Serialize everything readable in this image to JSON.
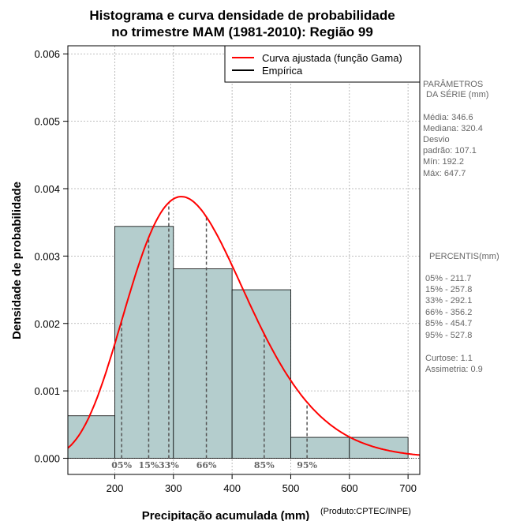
{
  "chart_data": {
    "type": "bar",
    "title_line1": "Histograma e curva densidade de probabilidade",
    "title_line2": "no trimestre MAM (1981-2010): Região 99",
    "xlabel": "Precipitação acumulada (mm)",
    "ylabel": "Densidade de probabilidade",
    "credit": "(Produto:CPTEC/INPE)",
    "xlim": [
      120,
      720
    ],
    "ylim": [
      -0.00024,
      0.00612
    ],
    "x_ticks": [
      200,
      300,
      400,
      500,
      600,
      700
    ],
    "x_tick_labels": [
      "200",
      "300",
      "400",
      "500",
      "600",
      "700"
    ],
    "y_ticks": [
      0,
      0.001,
      0.002,
      0.003,
      0.004,
      0.005,
      0.006
    ],
    "y_tick_labels": [
      "0.000",
      "0.001",
      "0.002",
      "0.003",
      "0.004",
      "0.005",
      "0.006"
    ],
    "bins": [
      {
        "start": 100,
        "end": 200,
        "density": 0.00063
      },
      {
        "start": 200,
        "end": 300,
        "density": 0.00344
      },
      {
        "start": 300,
        "end": 400,
        "density": 0.00281
      },
      {
        "start": 400,
        "end": 500,
        "density": 0.0025
      },
      {
        "start": 500,
        "end": 600,
        "density": 0.00031
      },
      {
        "start": 600,
        "end": 700,
        "density": 0.00031
      }
    ],
    "fitted_curve": {
      "name": "Curva ajustada (função Gama)",
      "distribution": "gamma",
      "shape": 10.47,
      "scale": 33.1
    },
    "percentile_markers": [
      {
        "label": "05%",
        "value": 211.7
      },
      {
        "label": "15%",
        "value": 257.8
      },
      {
        "label": "33%",
        "value": 292.1
      },
      {
        "label": "66%",
        "value": 356.2
      },
      {
        "label": "85%",
        "value": 454.7
      },
      {
        "label": "95%",
        "value": 527.8
      }
    ],
    "legend": [
      "Curva ajustada (função Gama)",
      "Empírica"
    ],
    "colors": {
      "bar_fill": "#b4cdcd",
      "curve": "#ff0000",
      "grid": "#aaaaaa",
      "marker": "#555555"
    }
  },
  "side_panel": {
    "params_title_1": "PARÂMETROS",
    "params_title_2": "DA SÉRIE (mm)",
    "media": "Média:  346.6",
    "mediana": "Mediana:  320.4",
    "desvio": "Desvio",
    "desvio_padrao": "padrão:  107.1",
    "min": "Mín:  192.2",
    "max": "Máx:  647.7",
    "percentis_title": "PERCENTIS(mm)",
    "p05": "05% -   211.7",
    "p15": "15% -   257.8",
    "p33": "33% -   292.1",
    "p66": "66% -   356.2",
    "p85": "85% -   454.7",
    "p95": "95% -   527.8",
    "curtose": "Curtose:  1.1",
    "assimetria": "Assimetria:  0.9"
  }
}
